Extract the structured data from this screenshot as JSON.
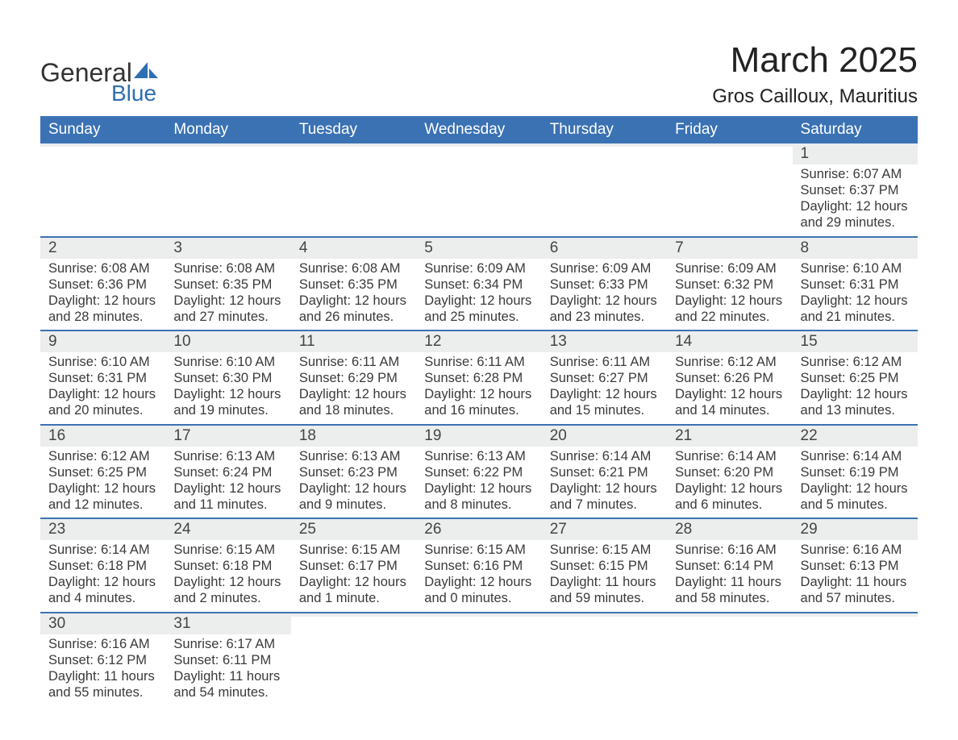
{
  "logo": {
    "word1": "General",
    "word2": "Blue"
  },
  "title": "March 2025",
  "location": "Gros Cailloux, Mauritius",
  "columns": [
    "Sunday",
    "Monday",
    "Tuesday",
    "Wednesday",
    "Thursday",
    "Friday",
    "Saturday"
  ],
  "colors": {
    "header_bg": "#3b72b3",
    "header_text": "#ffffff",
    "daynum_bg": "#eceded",
    "row_border": "#3b72b3",
    "text": "#3a3a3a",
    "logo_accent": "#2e6fb0"
  },
  "fonts": {
    "title_size_pt": 33,
    "location_size_pt": 18,
    "header_size_pt": 14,
    "daynum_size_pt": 14,
    "body_size_pt": 12
  },
  "weeks": [
    [
      null,
      null,
      null,
      null,
      null,
      null,
      {
        "n": 1,
        "sunrise": "6:07 AM",
        "sunset": "6:37 PM",
        "dl_h": 12,
        "dl_m": 29
      }
    ],
    [
      {
        "n": 2,
        "sunrise": "6:08 AM",
        "sunset": "6:36 PM",
        "dl_h": 12,
        "dl_m": 28
      },
      {
        "n": 3,
        "sunrise": "6:08 AM",
        "sunset": "6:35 PM",
        "dl_h": 12,
        "dl_m": 27
      },
      {
        "n": 4,
        "sunrise": "6:08 AM",
        "sunset": "6:35 PM",
        "dl_h": 12,
        "dl_m": 26
      },
      {
        "n": 5,
        "sunrise": "6:09 AM",
        "sunset": "6:34 PM",
        "dl_h": 12,
        "dl_m": 25
      },
      {
        "n": 6,
        "sunrise": "6:09 AM",
        "sunset": "6:33 PM",
        "dl_h": 12,
        "dl_m": 23
      },
      {
        "n": 7,
        "sunrise": "6:09 AM",
        "sunset": "6:32 PM",
        "dl_h": 12,
        "dl_m": 22
      },
      {
        "n": 8,
        "sunrise": "6:10 AM",
        "sunset": "6:31 PM",
        "dl_h": 12,
        "dl_m": 21
      }
    ],
    [
      {
        "n": 9,
        "sunrise": "6:10 AM",
        "sunset": "6:31 PM",
        "dl_h": 12,
        "dl_m": 20
      },
      {
        "n": 10,
        "sunrise": "6:10 AM",
        "sunset": "6:30 PM",
        "dl_h": 12,
        "dl_m": 19
      },
      {
        "n": 11,
        "sunrise": "6:11 AM",
        "sunset": "6:29 PM",
        "dl_h": 12,
        "dl_m": 18
      },
      {
        "n": 12,
        "sunrise": "6:11 AM",
        "sunset": "6:28 PM",
        "dl_h": 12,
        "dl_m": 16
      },
      {
        "n": 13,
        "sunrise": "6:11 AM",
        "sunset": "6:27 PM",
        "dl_h": 12,
        "dl_m": 15
      },
      {
        "n": 14,
        "sunrise": "6:12 AM",
        "sunset": "6:26 PM",
        "dl_h": 12,
        "dl_m": 14
      },
      {
        "n": 15,
        "sunrise": "6:12 AM",
        "sunset": "6:25 PM",
        "dl_h": 12,
        "dl_m": 13
      }
    ],
    [
      {
        "n": 16,
        "sunrise": "6:12 AM",
        "sunset": "6:25 PM",
        "dl_h": 12,
        "dl_m": 12
      },
      {
        "n": 17,
        "sunrise": "6:13 AM",
        "sunset": "6:24 PM",
        "dl_h": 12,
        "dl_m": 11
      },
      {
        "n": 18,
        "sunrise": "6:13 AM",
        "sunset": "6:23 PM",
        "dl_h": 12,
        "dl_m": 9
      },
      {
        "n": 19,
        "sunrise": "6:13 AM",
        "sunset": "6:22 PM",
        "dl_h": 12,
        "dl_m": 8
      },
      {
        "n": 20,
        "sunrise": "6:14 AM",
        "sunset": "6:21 PM",
        "dl_h": 12,
        "dl_m": 7
      },
      {
        "n": 21,
        "sunrise": "6:14 AM",
        "sunset": "6:20 PM",
        "dl_h": 12,
        "dl_m": 6
      },
      {
        "n": 22,
        "sunrise": "6:14 AM",
        "sunset": "6:19 PM",
        "dl_h": 12,
        "dl_m": 5
      }
    ],
    [
      {
        "n": 23,
        "sunrise": "6:14 AM",
        "sunset": "6:18 PM",
        "dl_h": 12,
        "dl_m": 4
      },
      {
        "n": 24,
        "sunrise": "6:15 AM",
        "sunset": "6:18 PM",
        "dl_h": 12,
        "dl_m": 2
      },
      {
        "n": 25,
        "sunrise": "6:15 AM",
        "sunset": "6:17 PM",
        "dl_h": 12,
        "dl_m": 1
      },
      {
        "n": 26,
        "sunrise": "6:15 AM",
        "sunset": "6:16 PM",
        "dl_h": 12,
        "dl_m": 0
      },
      {
        "n": 27,
        "sunrise": "6:15 AM",
        "sunset": "6:15 PM",
        "dl_h": 11,
        "dl_m": 59
      },
      {
        "n": 28,
        "sunrise": "6:16 AM",
        "sunset": "6:14 PM",
        "dl_h": 11,
        "dl_m": 58
      },
      {
        "n": 29,
        "sunrise": "6:16 AM",
        "sunset": "6:13 PM",
        "dl_h": 11,
        "dl_m": 57
      }
    ],
    [
      {
        "n": 30,
        "sunrise": "6:16 AM",
        "sunset": "6:12 PM",
        "dl_h": 11,
        "dl_m": 55
      },
      {
        "n": 31,
        "sunrise": "6:17 AM",
        "sunset": "6:11 PM",
        "dl_h": 11,
        "dl_m": 54
      },
      null,
      null,
      null,
      null,
      null
    ]
  ],
  "labels": {
    "sunrise": "Sunrise:",
    "sunset": "Sunset:",
    "daylight_prefix": "Daylight:",
    "hours_word": "hours",
    "and_word": "and",
    "minutes_suffix_singular": "minute.",
    "minutes_suffix_plural": "minutes."
  }
}
